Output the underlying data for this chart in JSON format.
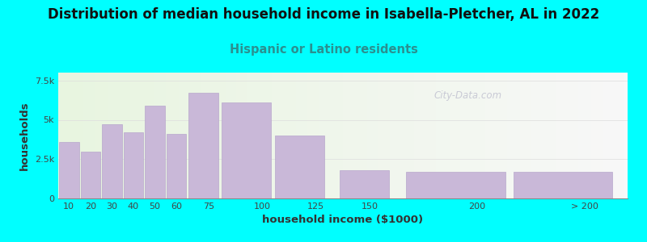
{
  "title": "Distribution of median household income in Isabella-Pletcher, AL in 2022",
  "subtitle": "Hispanic or Latino residents",
  "xlabel": "household income ($1000)",
  "ylabel": "households",
  "background_color": "#00FFFF",
  "bar_color": "#c9b8d8",
  "bar_edge_color": "#b8a8cc",
  "watermark": "City-Data.com",
  "bar_left_edges": [
    5,
    15,
    25,
    35,
    45,
    55,
    65,
    80,
    105,
    135,
    165,
    215
  ],
  "bar_widths": [
    10,
    10,
    10,
    10,
    10,
    10,
    15,
    25,
    25,
    25,
    50,
    50
  ],
  "bar_values": [
    3600,
    3000,
    4700,
    4200,
    5900,
    4100,
    6700,
    6100,
    4000,
    1800,
    1700,
    1700
  ],
  "xtick_positions": [
    10,
    20,
    30,
    40,
    50,
    60,
    75,
    100,
    125,
    150,
    200
  ],
  "xtick_labels": [
    "10",
    "20",
    "30",
    "40",
    "50",
    "60",
    "75",
    "100",
    "125",
    "150",
    "200"
  ],
  "xlabel_extra": "> 200",
  "xlabel_extra_pos": 250,
  "xlim": [
    5,
    270
  ],
  "ylim": [
    0,
    8000
  ],
  "yticks": [
    0,
    2500,
    5000,
    7500
  ],
  "ytick_labels": [
    "0",
    "2.5k",
    "5k",
    "7.5k"
  ],
  "title_fontsize": 12,
  "subtitle_fontsize": 10.5,
  "subtitle_color": "#2a9090",
  "axis_label_fontsize": 9.5
}
